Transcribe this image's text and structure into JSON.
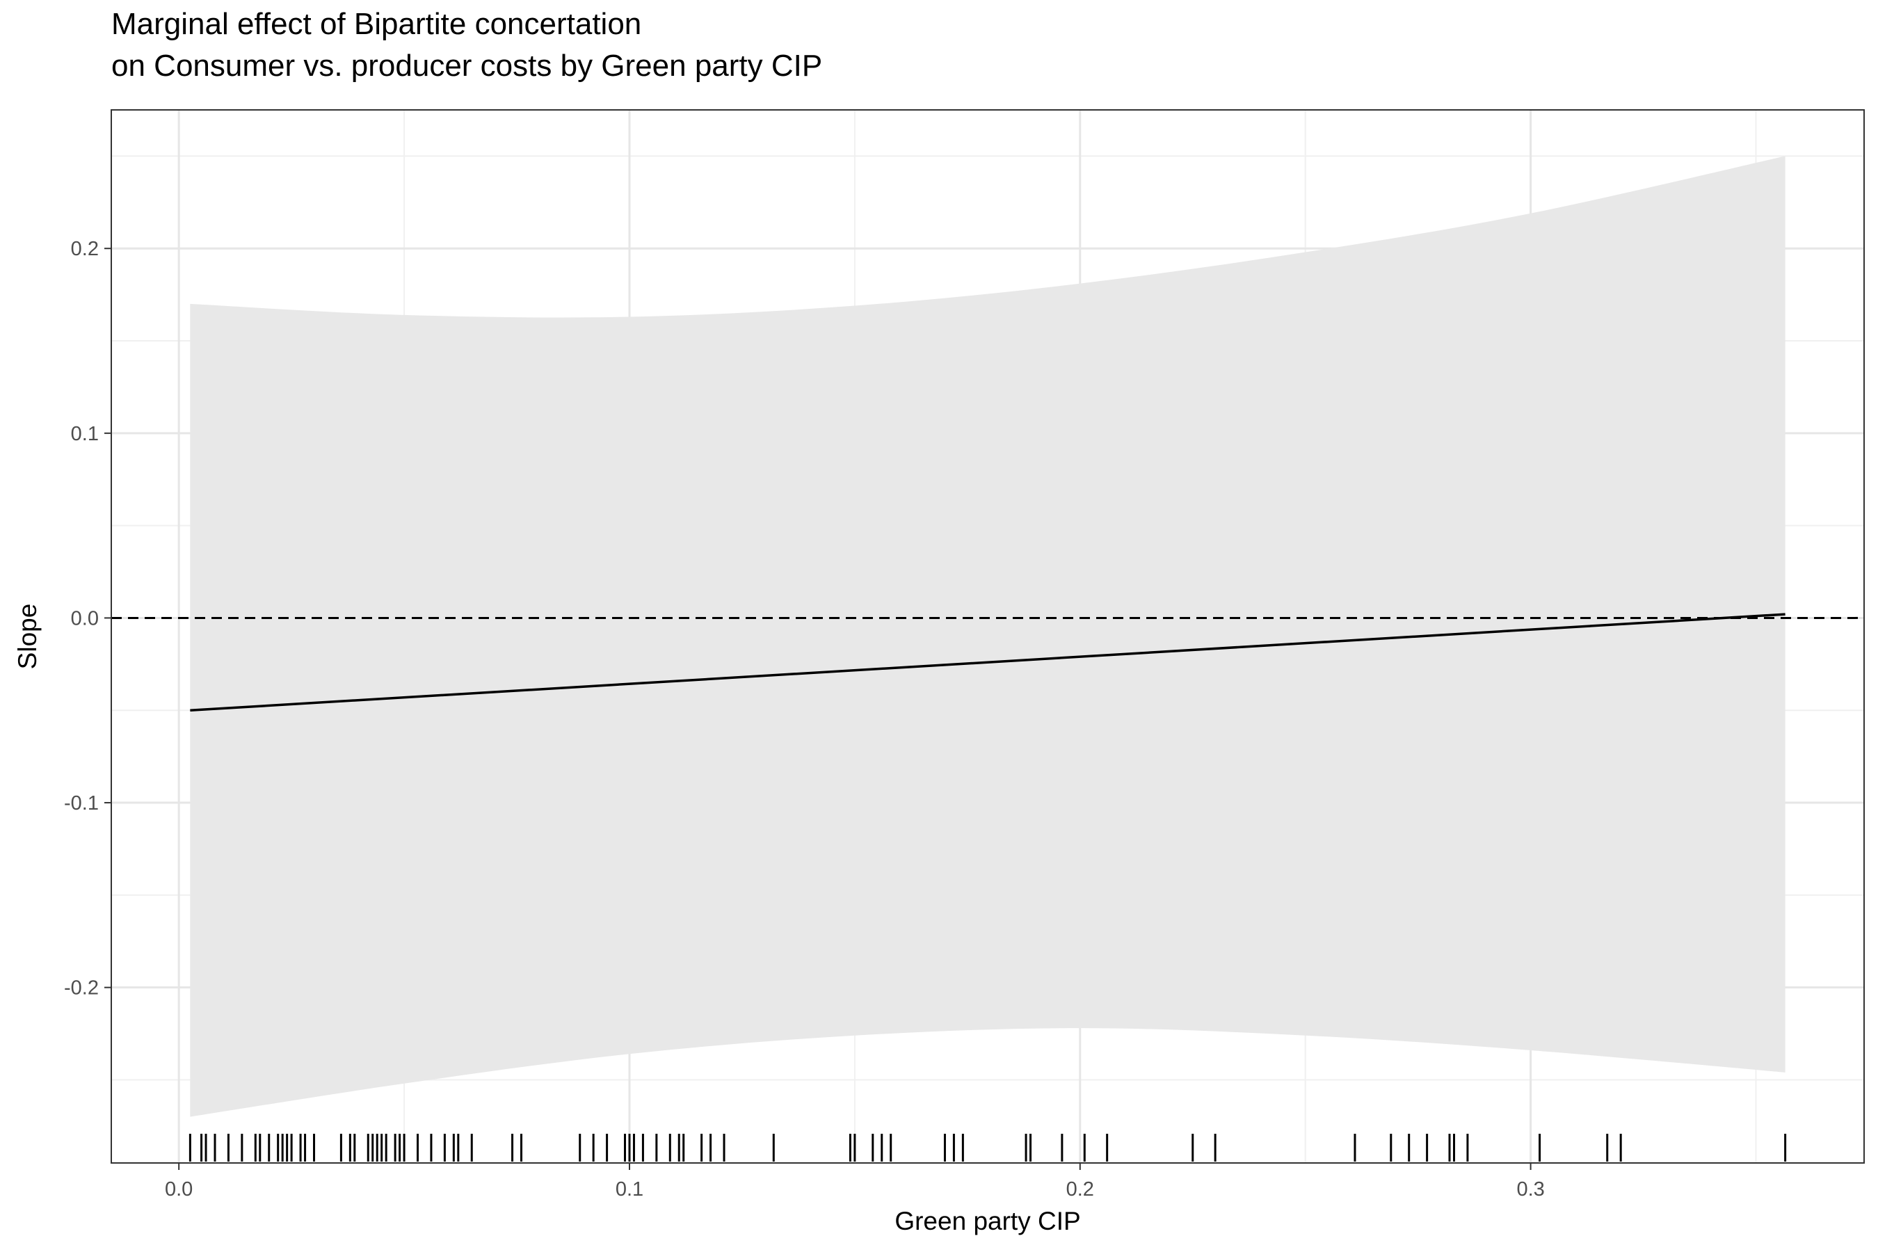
{
  "chart_data": {
    "type": "line",
    "title_line1": "Marginal effect of Bipartite concertation",
    "title_line2": "on Consumer vs. producer costs by Green party CIP",
    "xlabel": "Green party CIP",
    "ylabel": "Slope",
    "xlim": [
      -0.015,
      0.374
    ],
    "ylim": [
      -0.295,
      0.275
    ],
    "x_ticks": [
      0.0,
      0.1,
      0.2,
      0.3
    ],
    "x_tick_labels": [
      "0.0",
      "0.1",
      "0.2",
      "0.3"
    ],
    "y_ticks": [
      -0.2,
      -0.1,
      0.0,
      0.1,
      0.2
    ],
    "y_tick_labels": [
      "-0.2",
      "-0.1",
      "0.0",
      "0.1",
      "0.2"
    ],
    "grid": true,
    "reference_line": {
      "y": 0,
      "style": "dashed"
    },
    "line": {
      "x": [
        0.0025,
        0.3565
      ],
      "y": [
        -0.05,
        0.002
      ]
    },
    "ribbon": {
      "x": [
        0.0025,
        0.05,
        0.1,
        0.15,
        0.2,
        0.25,
        0.3,
        0.3565
      ],
      "upper": [
        0.17,
        0.164,
        0.163,
        0.169,
        0.181,
        0.198,
        0.219,
        0.25
      ],
      "lower": [
        -0.27,
        -0.252,
        -0.236,
        -0.226,
        -0.222,
        -0.226,
        -0.234,
        -0.246
      ]
    },
    "rug_x": [
      0.0025,
      0.005,
      0.006,
      0.008,
      0.011,
      0.014,
      0.017,
      0.018,
      0.02,
      0.022,
      0.023,
      0.024,
      0.025,
      0.027,
      0.028,
      0.03,
      0.036,
      0.038,
      0.039,
      0.042,
      0.043,
      0.044,
      0.045,
      0.046,
      0.048,
      0.049,
      0.05,
      0.053,
      0.056,
      0.059,
      0.061,
      0.062,
      0.065,
      0.074,
      0.076,
      0.089,
      0.092,
      0.095,
      0.099,
      0.1,
      0.101,
      0.103,
      0.106,
      0.109,
      0.111,
      0.112,
      0.116,
      0.118,
      0.121,
      0.132,
      0.149,
      0.15,
      0.154,
      0.156,
      0.158,
      0.17,
      0.172,
      0.174,
      0.188,
      0.189,
      0.196,
      0.201,
      0.206,
      0.225,
      0.23,
      0.261,
      0.269,
      0.273,
      0.277,
      0.282,
      0.283,
      0.286,
      0.302,
      0.317,
      0.32,
      0.3565
    ]
  }
}
